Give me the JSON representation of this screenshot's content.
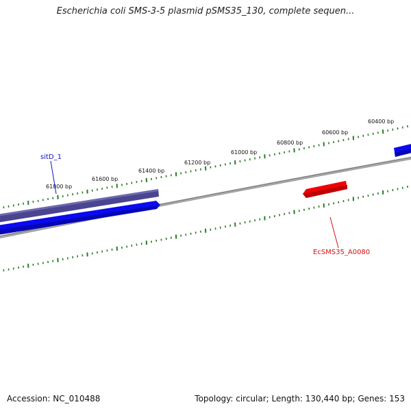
{
  "title": "Escherichia coli SMS-3-5 plasmid pSMS35_130, complete sequen...",
  "accession_text": "Accession: NC_010488",
  "summary_text": "Topology: circular; Length: 130,440 bp; Genes: 153",
  "colors": {
    "tick": "#2a7a2a",
    "backbone": "#808080",
    "gene_blue": "#0a0af0",
    "gene_navy": "#4a4590",
    "gene_red": "#f00000",
    "label_blue": "#1010c8",
    "label_red": "#d01010"
  },
  "ruler": {
    "labels": [
      "60400 bp",
      "60600 bp",
      "60800 bp",
      "61000 bp",
      "61200 bp",
      "61400 bp",
      "61600 bp",
      "61800 bp"
    ]
  },
  "genes": [
    {
      "name": "sitD_1",
      "strand": "reverse",
      "color": "navy"
    },
    {
      "name": "",
      "strand": "forward",
      "color": "blue"
    },
    {
      "name": "EcSMS35_A0080",
      "strand": "reverse",
      "color": "red"
    },
    {
      "name": "",
      "strand": "forward",
      "color": "blue"
    }
  ]
}
